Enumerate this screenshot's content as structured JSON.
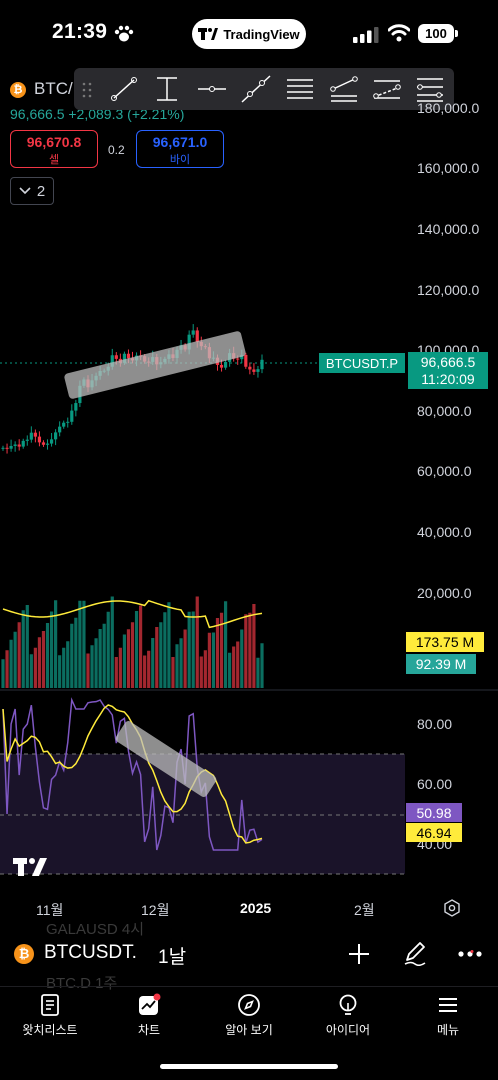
{
  "status_bar": {
    "time": "21:39",
    "battery": "100",
    "app_pill": "TradingView"
  },
  "header": {
    "symbol_short": "BTC/",
    "price_change": "96,666.5  +2,089.3 (+2.21%)",
    "sell": {
      "value": "96,670.8",
      "label": "셀"
    },
    "buy": {
      "value": "96,671.0",
      "label": "바이"
    },
    "spread": "0.2",
    "collapse_count": "2"
  },
  "toolbar": {
    "tools": [
      "trend-line-tool",
      "cross-line-tool",
      "horizontal-ray-tool",
      "extended-line-tool",
      "parallel-channel-tool",
      "regression-trend-tool",
      "flat-top-bottom-tool",
      "disjoint-channel-tool"
    ]
  },
  "price_axis": {
    "labels": [
      "180,000.0",
      "160,000.0",
      "140,000.0",
      "120,000.0",
      "100,000.0",
      "80,000.0",
      "60,000.0",
      "40,000.0",
      "20,000.0"
    ]
  },
  "price_tag": {
    "symbol": "BTCUSDT.P",
    "price": "96,666.5",
    "countdown": "11:20:09"
  },
  "volume": {
    "ma_value": "173.75 M",
    "value": "92.39 M"
  },
  "rsi": {
    "axis_labels": [
      "80.00",
      "60.00",
      "40.00"
    ],
    "rsi_value": "50.98",
    "ma_value": "46.94"
  },
  "time_axis": {
    "labels": [
      "11월",
      "12월",
      "2025",
      "2월"
    ]
  },
  "bottom": {
    "symbol": "BTCUSDT.",
    "interval": "1날",
    "ghost_list": [
      "GALAUSD   4시",
      "BTC.D   1주"
    ]
  },
  "nav": {
    "items": [
      "왓치리스트",
      "차트",
      "알아 보기",
      "아이디어",
      "메뉴"
    ]
  },
  "colors": {
    "up": "#089981",
    "down": "#f23645",
    "accent": "#2962ff",
    "bitcoin": "#f7931a",
    "ma": "#ffeb3b",
    "rsi": "#7e57c2"
  },
  "chart_data": {
    "type": "candlestick",
    "x_labels": [
      "11월",
      "12월",
      "2025",
      "2월"
    ],
    "ylim": [
      40000,
      190000
    ],
    "close": [
      67500,
      67200,
      68100,
      68600,
      67900,
      69800,
      70200,
      72500,
      71200,
      69300,
      68500,
      68900,
      70300,
      72600,
      74500,
      75800,
      76100,
      79800,
      82300,
      88000,
      90100,
      87500,
      89800,
      91300,
      92900,
      93000,
      94300,
      98100,
      96900,
      95600,
      98600,
      97100,
      96400,
      98000,
      97800,
      96000,
      95900,
      97500,
      95100,
      95800,
      96900,
      98400,
      97200,
      99900,
      101400,
      100000,
      104900,
      106300,
      102500,
      101100,
      100800,
      97100,
      97300,
      94900,
      94000,
      95900,
      98800,
      97000,
      96800,
      98200,
      94300,
      93400,
      92600,
      93500,
      96600
    ]
  },
  "volume_chart": {
    "ma_line": "yellow"
  },
  "rsi_chart": {
    "levels": [
      70,
      50,
      30
    ]
  }
}
